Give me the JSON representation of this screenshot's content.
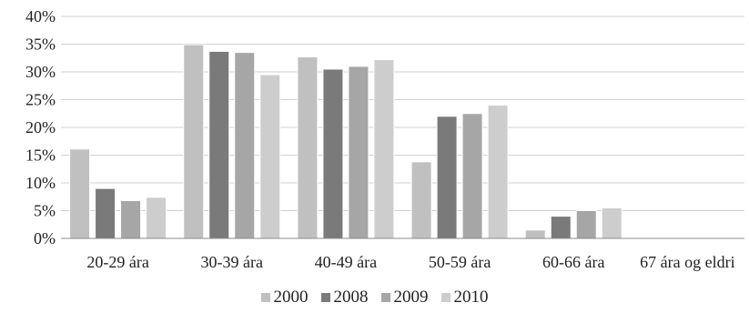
{
  "chart_data": {
    "type": "bar",
    "categories": [
      "20-29 ára",
      "30-39 ára",
      "40-49 ára",
      "50-59 ára",
      "60-66 ára",
      "67 ára og eldri"
    ],
    "series": [
      {
        "name": "2000",
        "color": "#c0c0c0",
        "values": [
          0.161,
          0.349,
          0.327,
          0.138,
          0.015,
          0.0
        ]
      },
      {
        "name": "2008",
        "color": "#7a7a7a",
        "values": [
          0.09,
          0.337,
          0.305,
          0.22,
          0.04,
          0.0
        ]
      },
      {
        "name": "2009",
        "color": "#a6a6a6",
        "values": [
          0.068,
          0.335,
          0.31,
          0.225,
          0.05,
          0.0
        ]
      },
      {
        "name": "2010",
        "color": "#cdcdcd",
        "values": [
          0.074,
          0.295,
          0.322,
          0.24,
          0.055,
          0.0
        ]
      }
    ],
    "yticks": [
      "0%",
      "5%",
      "10%",
      "15%",
      "20%",
      "25%",
      "30%",
      "35%",
      "40%"
    ],
    "ylim": [
      0,
      0.4
    ],
    "grid": true,
    "legend_position": "bottom",
    "title": "",
    "xlabel": "",
    "ylabel": ""
  }
}
